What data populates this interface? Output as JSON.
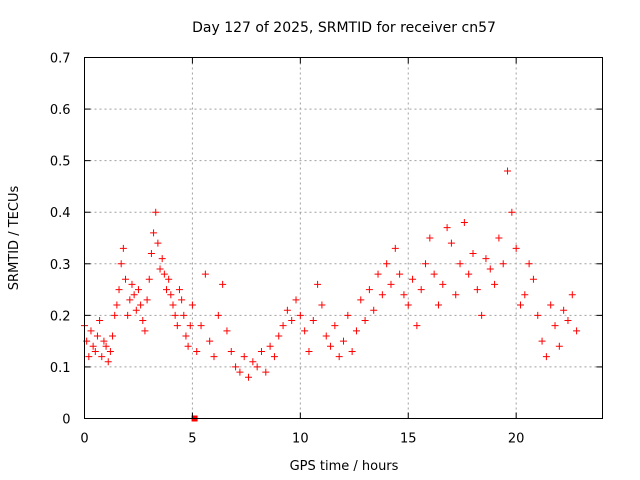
{
  "chart_data": {
    "type": "scatter",
    "title": "Day 127 of 2025, SRMTID for receiver cn57",
    "xlabel": "GPS time / hours",
    "ylabel": "SRMTID / TECUs",
    "xlim": [
      0,
      24
    ],
    "ylim": [
      0,
      0.7
    ],
    "xticks": [
      0,
      5,
      10,
      15,
      20
    ],
    "xtick_labels": [
      "0",
      "5",
      "10",
      "15",
      "20"
    ],
    "yticks": [
      0,
      0.1,
      0.2,
      0.3,
      0.4,
      0.5,
      0.6,
      0.7
    ],
    "ytick_labels": [
      "0",
      "0.1",
      "0.2",
      "0.3",
      "0.4",
      "0.5",
      "0.6",
      "0.7"
    ],
    "grid": true,
    "marker": "plus",
    "marker_color": "#ff0000",
    "outlier_marker": {
      "shape": "square",
      "x": 5.1,
      "y": 0.0
    },
    "series": [
      {
        "name": "SRMTID",
        "x": [
          0.0,
          0.1,
          0.2,
          0.3,
          0.4,
          0.5,
          0.6,
          0.7,
          0.8,
          0.9,
          1.0,
          1.1,
          1.2,
          1.3,
          1.4,
          1.5,
          1.6,
          1.7,
          1.8,
          1.9,
          2.0,
          2.1,
          2.2,
          2.3,
          2.4,
          2.5,
          2.6,
          2.7,
          2.8,
          2.9,
          3.0,
          3.1,
          3.2,
          3.3,
          3.4,
          3.5,
          3.6,
          3.7,
          3.8,
          3.9,
          4.0,
          4.1,
          4.2,
          4.3,
          4.4,
          4.5,
          4.6,
          4.7,
          4.8,
          4.9,
          5.0,
          5.2,
          5.4,
          5.6,
          5.8,
          6.0,
          6.2,
          6.4,
          6.6,
          6.8,
          7.0,
          7.2,
          7.4,
          7.6,
          7.8,
          8.0,
          8.2,
          8.4,
          8.6,
          8.8,
          9.0,
          9.2,
          9.4,
          9.6,
          9.8,
          10.0,
          10.2,
          10.4,
          10.6,
          10.8,
          11.0,
          11.2,
          11.4,
          11.6,
          11.8,
          12.0,
          12.2,
          12.4,
          12.6,
          12.8,
          13.0,
          13.2,
          13.4,
          13.6,
          13.8,
          14.0,
          14.2,
          14.4,
          14.6,
          14.8,
          15.0,
          15.2,
          15.4,
          15.6,
          15.8,
          16.0,
          16.2,
          16.4,
          16.6,
          16.8,
          17.0,
          17.2,
          17.4,
          17.6,
          17.8,
          18.0,
          18.2,
          18.4,
          18.6,
          18.8,
          19.0,
          19.2,
          19.4,
          19.6,
          19.8,
          20.0,
          20.2,
          20.4,
          20.6,
          20.8,
          21.0,
          21.2,
          21.4,
          21.6,
          21.8,
          22.0,
          22.2,
          22.4,
          22.6,
          22.8
        ],
        "y": [
          0.18,
          0.15,
          0.12,
          0.17,
          0.14,
          0.13,
          0.16,
          0.19,
          0.12,
          0.15,
          0.14,
          0.11,
          0.13,
          0.16,
          0.2,
          0.22,
          0.25,
          0.3,
          0.33,
          0.27,
          0.2,
          0.23,
          0.26,
          0.24,
          0.21,
          0.25,
          0.22,
          0.19,
          0.17,
          0.23,
          0.27,
          0.32,
          0.36,
          0.4,
          0.34,
          0.29,
          0.31,
          0.28,
          0.25,
          0.27,
          0.24,
          0.22,
          0.2,
          0.18,
          0.25,
          0.23,
          0.2,
          0.16,
          0.14,
          0.18,
          0.22,
          0.13,
          0.18,
          0.28,
          0.15,
          0.12,
          0.2,
          0.26,
          0.17,
          0.13,
          0.1,
          0.09,
          0.12,
          0.08,
          0.11,
          0.1,
          0.13,
          0.09,
          0.14,
          0.12,
          0.16,
          0.18,
          0.21,
          0.19,
          0.23,
          0.2,
          0.17,
          0.13,
          0.19,
          0.26,
          0.22,
          0.16,
          0.14,
          0.18,
          0.12,
          0.15,
          0.2,
          0.13,
          0.17,
          0.23,
          0.19,
          0.25,
          0.21,
          0.28,
          0.24,
          0.3,
          0.26,
          0.33,
          0.28,
          0.24,
          0.22,
          0.27,
          0.18,
          0.25,
          0.3,
          0.35,
          0.28,
          0.22,
          0.26,
          0.37,
          0.34,
          0.24,
          0.3,
          0.38,
          0.28,
          0.32,
          0.25,
          0.2,
          0.31,
          0.29,
          0.26,
          0.35,
          0.3,
          0.48,
          0.4,
          0.33,
          0.22,
          0.24,
          0.3,
          0.27,
          0.2,
          0.15,
          0.12,
          0.22,
          0.18,
          0.14,
          0.21,
          0.19,
          0.24,
          0.17
        ]
      }
    ]
  }
}
